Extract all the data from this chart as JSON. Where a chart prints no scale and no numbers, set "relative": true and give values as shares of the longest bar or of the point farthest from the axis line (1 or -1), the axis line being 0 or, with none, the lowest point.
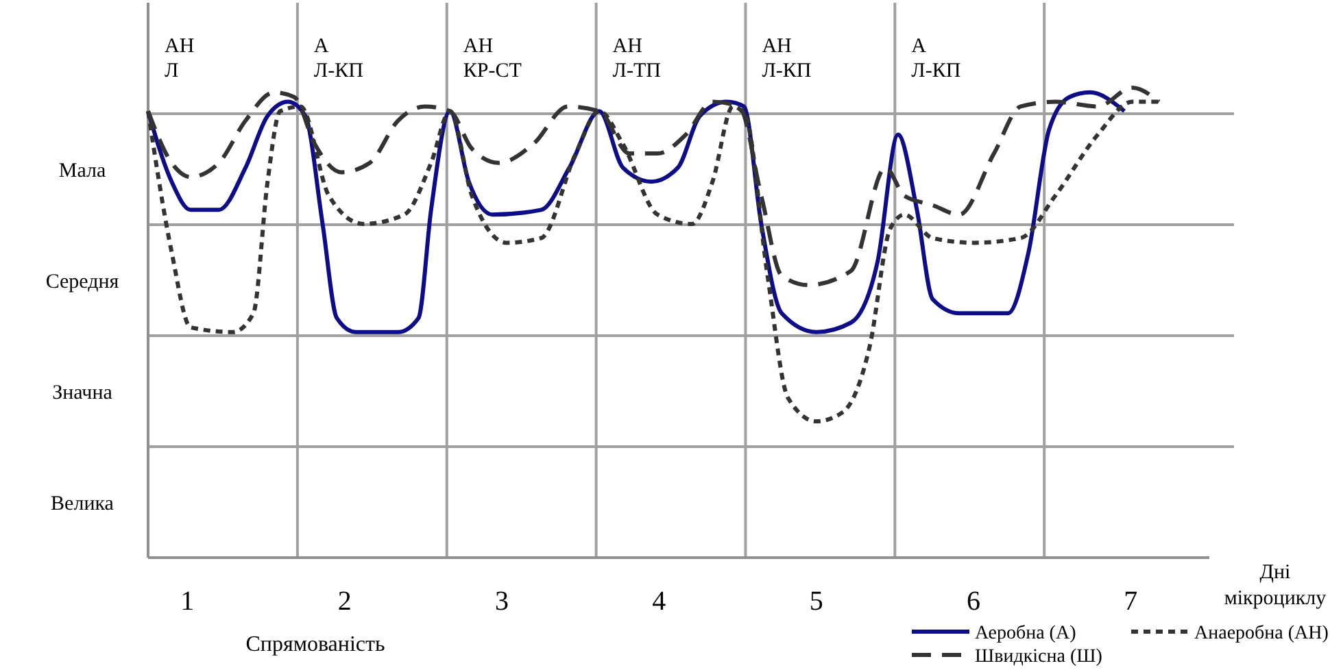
{
  "chart_data": {
    "type": "line",
    "relative": true,
    "xlabel": "Дні\nмікроциклу",
    "legend_title": "Спрямованість",
    "legend": "bottom",
    "grid": true,
    "xlim": [
      0.75,
      7.5
    ],
    "xticks": [
      1,
      2,
      3,
      4,
      5,
      6,
      7,
      {
        "value": 1.7,
        "label": null
      },
      {
        "value": 2.65,
        "label": null
      },
      {
        "value": 3.6,
        "label": null
      },
      {
        "value": 4.55,
        "label": null
      },
      {
        "value": 5.5,
        "label": null
      },
      {
        "value": 6.45,
        "label": null
      }
    ],
    "annotations": [
      "АН\nЛ",
      "А\nЛ-КП",
      "АН\nКР-СТ",
      "АН\nЛ-ТП",
      "АН\nЛ-КП",
      "А\nЛ-КП",
      "Мала",
      "Середня",
      "Значна",
      "Велика"
    ],
    "series": [
      {
        "name": "Аеробна (А)",
        "color": "#0d0d8a",
        "line_style": "solid",
        "x": [
          0.75,
          0.9,
          1.02,
          1.2,
          1.37,
          1.51,
          1.64,
          1.75,
          1.86,
          1.95,
          2.07,
          2.34,
          2.47,
          2.55,
          2.67,
          2.79,
          2.94,
          3.25,
          3.43,
          3.62,
          3.77,
          3.95,
          4.12,
          4.26,
          4.43,
          4.54,
          4.65,
          4.78,
          5,
          5.22,
          5.39,
          5.52,
          5.64,
          5.74,
          5.91,
          6.22,
          6.35,
          6.48,
          6.61,
          6.74,
          6.96
        ],
        "values": [
          0.95,
          0.8,
          0.74,
          0.74,
          0.83,
          0.94,
          0.97,
          0.94,
          0.71,
          0.51,
          0.48,
          0.48,
          0.51,
          0.74,
          0.95,
          0.8,
          0.73,
          0.74,
          0.83,
          0.95,
          0.83,
          0.8,
          0.83,
          0.94,
          0.97,
          0.96,
          0.71,
          0.52,
          0.48,
          0.5,
          0.63,
          0.9,
          0.74,
          0.55,
          0.52,
          0.52,
          0.65,
          0.91,
          0.98,
          0.99,
          0.95
        ]
      },
      {
        "name": "Анаеробна (АН)",
        "color": "#333333",
        "line_style": "dotted",
        "x": [
          0.75,
          0.9,
          1.02,
          1.29,
          1.42,
          1.51,
          1.59,
          1.72,
          1.9,
          2.12,
          2.38,
          2.55,
          2.67,
          2.81,
          3.03,
          3.25,
          3.47,
          3.62,
          3.77,
          3.99,
          4.21,
          4.34,
          4.47,
          4.55,
          4.69,
          4.82,
          5,
          5.17,
          5.34,
          5.47,
          5.56,
          5.74,
          6,
          6.3,
          6.52,
          6.79,
          7.01,
          7.18
        ],
        "values": [
          0.95,
          0.65,
          0.49,
          0.48,
          0.52,
          0.8,
          0.95,
          0.96,
          0.77,
          0.71,
          0.73,
          0.84,
          0.95,
          0.77,
          0.67,
          0.68,
          0.86,
          0.95,
          0.88,
          0.73,
          0.71,
          0.8,
          0.96,
          0.94,
          0.6,
          0.34,
          0.29,
          0.31,
          0.45,
          0.7,
          0.73,
          0.68,
          0.67,
          0.68,
          0.77,
          0.9,
          0.97,
          0.97
        ]
      },
      {
        "name": "Швидкісна (Ш)",
        "color": "#333333",
        "line_style": "dashed",
        "x": [
          0.75,
          0.9,
          1.02,
          1.2,
          1.37,
          1.55,
          1.68,
          1.81,
          1.98,
          2.16,
          2.34,
          2.51,
          2.67,
          2.81,
          2.98,
          3.2,
          3.42,
          3.62,
          3.81,
          3.99,
          4.17,
          4.34,
          4.51,
          4.65,
          4.78,
          4.95,
          5.22,
          5.44,
          5.56,
          5.74,
          5.91,
          6.13,
          6.3,
          6.52,
          6.79,
          7.01,
          7.18
        ],
        "values": [
          0.95,
          0.84,
          0.81,
          0.84,
          0.93,
          0.99,
          0.98,
          0.88,
          0.82,
          0.84,
          0.93,
          0.96,
          0.95,
          0.87,
          0.84,
          0.88,
          0.96,
          0.95,
          0.86,
          0.86,
          0.9,
          0.97,
          0.96,
          0.77,
          0.6,
          0.58,
          0.61,
          0.83,
          0.77,
          0.75,
          0.73,
          0.86,
          0.96,
          0.97,
          0.96,
          1,
          0.97
        ]
      }
    ]
  }
}
